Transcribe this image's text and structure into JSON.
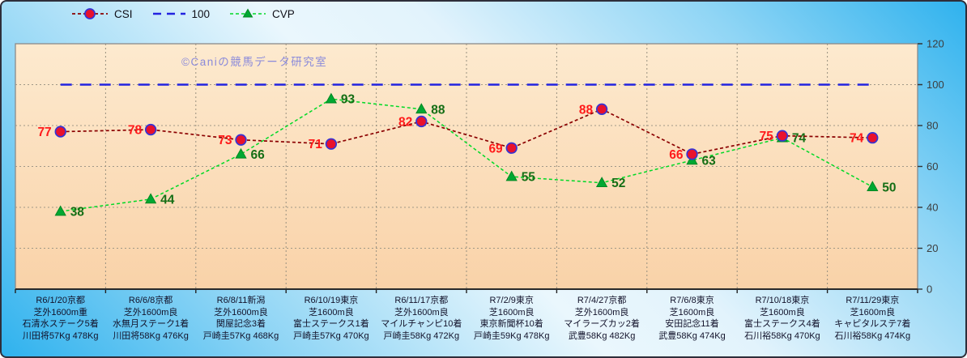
{
  "watermark": "©Caniの競馬データ研究室",
  "colors": {
    "csi_marker": "#e8112d",
    "csi_marker_ring": "#3434d6",
    "csi_line": "#8b0000",
    "csi_label": "#ff1a1a",
    "ref_line": "#2323e0",
    "cvp_marker": "#00a832",
    "cvp_line": "#00d926",
    "cvp_label": "#156e15",
    "plot_bg_top": "#fdeacf",
    "plot_bg_bottom": "#f9d2a8",
    "grid": "#a09888",
    "axis_text": "#3d3d3d"
  },
  "chart_data": {
    "type": "line",
    "title": "",
    "xlabel": "",
    "ylabel": "",
    "ylim": [
      0,
      120
    ],
    "yticks": [
      0,
      20,
      40,
      60,
      80,
      100,
      120
    ],
    "grid": true,
    "legend_position": "top-left",
    "categories": [
      [
        "R6/1/20京都",
        "芝外1600m重",
        "石清水ステーク5着",
        "川田将57Kg 478Kg"
      ],
      [
        "R6/6/8京都",
        "芝外1600m良",
        "水無月ステーク1着",
        "川田将58Kg 476Kg"
      ],
      [
        "R6/8/11新潟",
        "芝外1600m良",
        "関屋記念3着",
        "戸崎圭57Kg 468Kg"
      ],
      [
        "R6/10/19東京",
        "芝1600m良",
        "富士ステークス1着",
        "戸崎圭57Kg 470Kg"
      ],
      [
        "R6/11/17京都",
        "芝外1600m良",
        "マイルチャンピ10着",
        "戸崎圭58Kg 472Kg"
      ],
      [
        "R7/2/9東京",
        "芝1600m良",
        "東京新聞杯10着",
        "戸崎圭59Kg 478Kg"
      ],
      [
        "R7/4/27京都",
        "芝外1600m良",
        "マイラーズカッ2着",
        "武豊58Kg 482Kg"
      ],
      [
        "R7/6/8東京",
        "芝1600m良",
        "安田記念11着",
        "武豊58Kg 474Kg"
      ],
      [
        "R7/10/18東京",
        "芝1600m良",
        "富士ステークス4着",
        "石川裕58Kg 470Kg"
      ],
      [
        "R7/11/29東京",
        "芝1600m良",
        "キャピタルステ7着",
        "石川裕58Kg 474Kg"
      ]
    ],
    "series": [
      {
        "name": "CSI",
        "marker": "circle",
        "values": [
          77,
          78,
          73,
          71,
          82,
          69,
          88,
          66,
          75,
          74
        ]
      },
      {
        "name": "100",
        "marker": "none",
        "values": [
          100,
          100,
          100,
          100,
          100,
          100,
          100,
          100,
          100,
          100
        ]
      },
      {
        "name": "CVP",
        "marker": "triangle",
        "values": [
          38,
          44,
          66,
          93,
          88,
          55,
          52,
          63,
          74,
          50
        ]
      }
    ]
  }
}
